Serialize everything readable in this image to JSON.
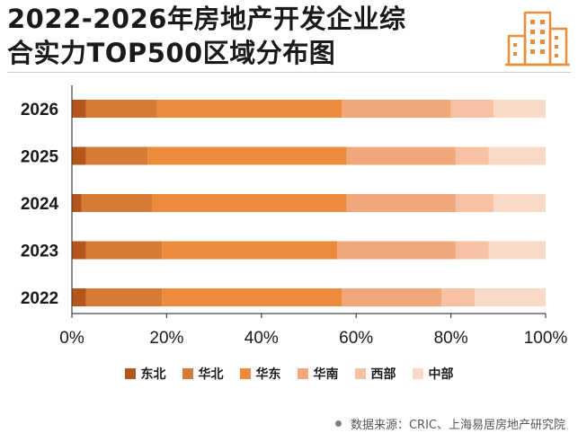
{
  "title": {
    "line1": "2022-2026年房地产开发企业综",
    "line2": "合实力TOP500区域分布图"
  },
  "source": "数据来源：CRIC、上海易居房地产研究院",
  "chart_data": {
    "type": "bar",
    "orientation": "horizontal",
    "stacked": true,
    "categories": [
      "2026",
      "2025",
      "2024",
      "2023",
      "2022"
    ],
    "xlim": [
      0,
      100
    ],
    "x_ticks": [
      "0%",
      "20%",
      "40%",
      "60%",
      "80%",
      "100%"
    ],
    "grid": false,
    "legend_position": "bottom",
    "series": [
      {
        "name": "东北",
        "color": "#B4561A",
        "values": [
          3,
          3,
          2,
          3,
          3
        ]
      },
      {
        "name": "华北",
        "color": "#D77A35",
        "values": [
          15,
          13,
          15,
          16,
          16
        ]
      },
      {
        "name": "华东",
        "color": "#EC8B3C",
        "values": [
          39,
          42,
          41,
          37,
          38
        ]
      },
      {
        "name": "华南",
        "color": "#F2A77A",
        "values": [
          23,
          23,
          23,
          25,
          21
        ]
      },
      {
        "name": "西部",
        "color": "#F6C2A3",
        "values": [
          9,
          7,
          8,
          7,
          7
        ]
      },
      {
        "name": "中部",
        "color": "#FAD9C6",
        "values": [
          11,
          12,
          11,
          12,
          15
        ]
      }
    ]
  }
}
